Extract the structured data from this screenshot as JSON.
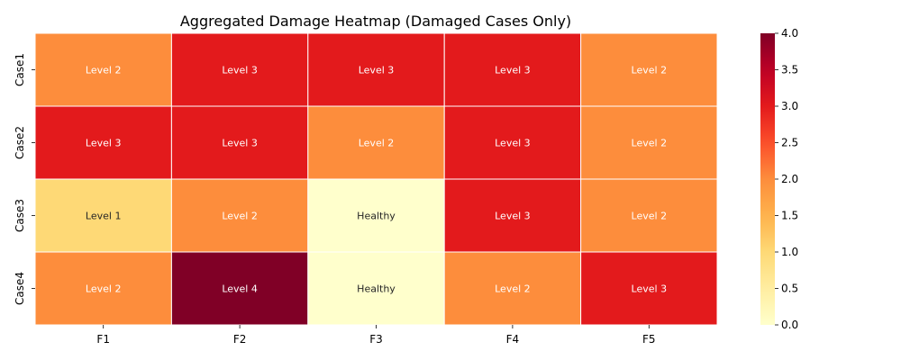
{
  "chart_data": {
    "type": "heatmap",
    "title": "Aggregated Damage Heatmap (Damaged Cases Only)",
    "xlabel": "",
    "ylabel": "",
    "x_categories": [
      "F1",
      "F2",
      "F3",
      "F4",
      "F5"
    ],
    "y_categories": [
      "Case1",
      "Case2",
      "Case3",
      "Case4"
    ],
    "values": [
      [
        2,
        3,
        3,
        3,
        2
      ],
      [
        3,
        3,
        2,
        3,
        2
      ],
      [
        1,
        2,
        0,
        3,
        2
      ],
      [
        2,
        4,
        0,
        2,
        3
      ]
    ],
    "annotations": [
      [
        "Level 2",
        "Level 3",
        "Level 3",
        "Level 3",
        "Level 2"
      ],
      [
        "Level 3",
        "Level 3",
        "Level 2",
        "Level 3",
        "Level 2"
      ],
      [
        "Level 1",
        "Level 2",
        "Healthy",
        "Level 3",
        "Level 2"
      ],
      [
        "Level 2",
        "Level 4",
        "Healthy",
        "Level 2",
        "Level 3"
      ]
    ],
    "colorbar": {
      "range": [
        0,
        4
      ],
      "ticks": [
        "0.0",
        "0.5",
        "1.0",
        "1.5",
        "2.0",
        "2.5",
        "3.0",
        "3.5",
        "4.0"
      ],
      "colormap": "YlOrRd"
    }
  }
}
